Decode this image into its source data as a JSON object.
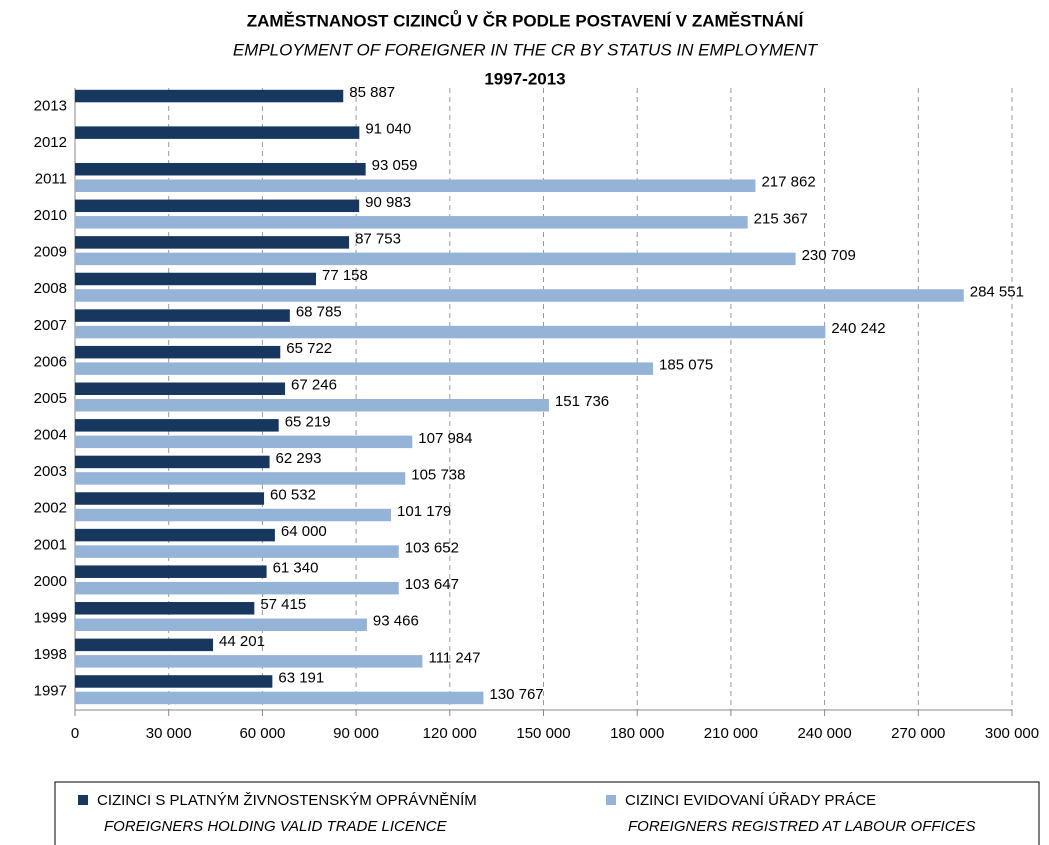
{
  "chart_data": {
    "type": "bar",
    "orientation": "horizontal",
    "title": "ZAMĚSTNANOST CIZINCŮ V ČR PODLE POSTAVENÍ V ZAMĚSTNÁNÍ",
    "subtitle": "EMPLOYMENT OF FOREIGNER IN THE CR BY STATUS IN EMPLOYMENT",
    "period": "1997-2013",
    "categories": [
      "1997",
      "1998",
      "1999",
      "2000",
      "2001",
      "2002",
      "2003",
      "2004",
      "2005",
      "2006",
      "2007",
      "2008",
      "2009",
      "2010",
      "2011",
      "2012",
      "2013"
    ],
    "series": [
      {
        "name": "CIZINCI S PLATNÝM ŽIVNOSTENSKÝM OPRÁVNĚNÍM",
        "name_en": "FOREIGNERS HOLDING VALID TRADE LICENCE",
        "color": "#17375e",
        "values": [
          63191,
          44201,
          57415,
          61340,
          64000,
          60532,
          62293,
          65219,
          67246,
          65722,
          68785,
          77158,
          87753,
          90983,
          93059,
          91040,
          85887
        ],
        "value_labels": [
          "63 191",
          "44 201",
          "57 415",
          "61 340",
          "64 000",
          "60 532",
          "62 293",
          "65 219",
          "67 246",
          "65 722",
          "68 785",
          "77 158",
          "87 753",
          "90 983",
          "93 059",
          "91 040",
          "85 887"
        ]
      },
      {
        "name": "CIZINCI EVIDOVANÍ ÚŘADY PRÁCE",
        "name_en": "FOREIGNERS REGISTRED AT LABOUR OFFICES",
        "color": "#95b3d7",
        "values": [
          130767,
          111247,
          93466,
          103647,
          103652,
          101179,
          105738,
          107984,
          151736,
          185075,
          240242,
          284551,
          230709,
          215367,
          217862,
          null,
          null
        ],
        "value_labels": [
          "130 767",
          "111 247",
          "93 466",
          "103 647",
          "103 652",
          "101 179",
          "105 738",
          "107 984",
          "151 736",
          "185 075",
          "240 242",
          "284 551",
          "230 709",
          "215 367",
          "217 862",
          null,
          null
        ]
      }
    ],
    "xlim": [
      0,
      300000
    ],
    "xticks": [
      0,
      {
        "value": 30000,
        "label": "30 000"
      },
      {
        "value": 60000,
        "label": "60 000"
      },
      {
        "value": 90000,
        "label": "90 000"
      },
      {
        "value": 120000,
        "label": "120 000"
      },
      {
        "value": 150000,
        "label": "150 000"
      },
      {
        "value": 180000,
        "label": "180 000"
      },
      {
        "value": 210000,
        "label": "210 000"
      },
      {
        "value": 240000,
        "label": "240 000"
      },
      {
        "value": 270000,
        "label": "270 000"
      },
      {
        "value": 300000,
        "label": "300 000"
      }
    ],
    "grid": true,
    "legend": "bottom"
  }
}
